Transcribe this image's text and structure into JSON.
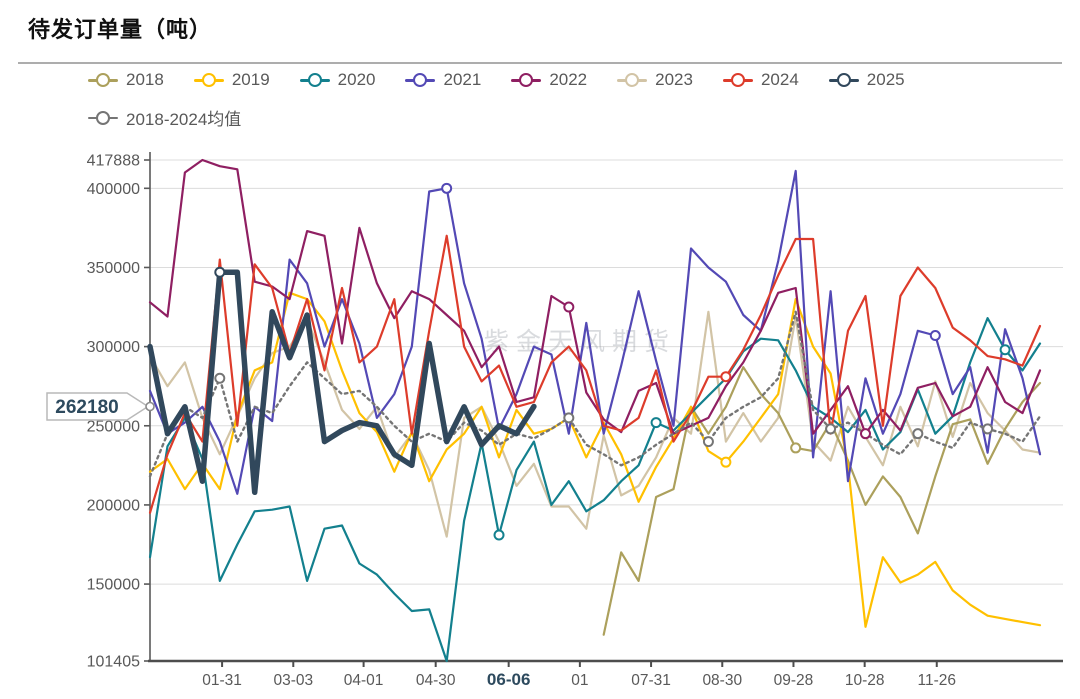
{
  "title": "待发订单量（吨）",
  "watermark": "紫金天风期货",
  "axis_callout": {
    "label": "262180",
    "value": 262180,
    "color": "#2d4a5e",
    "border": "#b9b9b9"
  },
  "legend": {
    "items": [
      {
        "label": "2018",
        "color": "#aca05c"
      },
      {
        "label": "2019",
        "color": "#ffc000"
      },
      {
        "label": "2020",
        "color": "#13808e"
      },
      {
        "label": "2021",
        "color": "#5349b5"
      },
      {
        "label": "2022",
        "color": "#8f1f62"
      },
      {
        "label": "2023",
        "color": "#d2c4a6"
      },
      {
        "label": "2024",
        "color": "#dd3c2b"
      },
      {
        "label": "2025",
        "color": "#31485c"
      },
      {
        "label": "2018-2024均值",
        "color": "#757575"
      }
    ]
  },
  "chart_data": {
    "type": "line",
    "title": "待发订单量（吨）",
    "ylabel": "吨",
    "ylim": [
      101405,
      417888
    ],
    "yticks": [
      417888,
      400000,
      350000,
      300000,
      250000,
      200000,
      150000,
      101405
    ],
    "grid": true,
    "legend_position": "top",
    "x_unit": "week-of-year (52 points, Jan–Dec)",
    "xticks": [
      {
        "label": "01-31",
        "pos": 0.081,
        "highlight": false
      },
      {
        "label": "03-03",
        "pos": 0.161,
        "highlight": false
      },
      {
        "label": "04-01",
        "pos": 0.24,
        "highlight": false
      },
      {
        "label": "04-30",
        "pos": 0.321,
        "highlight": false
      },
      {
        "label": "06-06",
        "pos": 0.403,
        "highlight": true
      },
      {
        "label": "01",
        "pos": 0.483,
        "highlight": false
      },
      {
        "label": "07-31",
        "pos": 0.563,
        "highlight": false
      },
      {
        "label": "08-30",
        "pos": 0.643,
        "highlight": false
      },
      {
        "label": "09-28",
        "pos": 0.723,
        "highlight": false
      },
      {
        "label": "10-28",
        "pos": 0.803,
        "highlight": false
      },
      {
        "label": "11-26",
        "pos": 0.884,
        "highlight": false
      }
    ],
    "draw_order": [
      "2023",
      "2018",
      "2019",
      "2020",
      "2021",
      "2022",
      "2024",
      "2018-2024均值",
      "2025"
    ],
    "series": [
      {
        "name": "2018",
        "color": "#aca05c",
        "width": 2.2,
        "dashed": false,
        "marker_indices": [
          37
        ],
        "values": [
          null,
          null,
          null,
          null,
          null,
          null,
          null,
          null,
          null,
          null,
          null,
          null,
          null,
          null,
          null,
          null,
          null,
          null,
          null,
          null,
          null,
          null,
          null,
          null,
          null,
          null,
          118000,
          170000,
          152000,
          205000,
          210000,
          262000,
          245000,
          262000,
          287000,
          270000,
          258000,
          236000,
          234000,
          252000,
          228000,
          200000,
          218000,
          205000,
          182000,
          218000,
          251000,
          254000,
          226000,
          248000,
          265000,
          277000
        ]
      },
      {
        "name": "2019",
        "color": "#ffc000",
        "width": 2.2,
        "dashed": false,
        "marker_indices": [
          33
        ],
        "values": [
          221000,
          229000,
          210000,
          226000,
          210000,
          257000,
          285000,
          290000,
          334000,
          330000,
          316000,
          285000,
          258000,
          246000,
          221000,
          246000,
          215000,
          235000,
          245000,
          262000,
          230000,
          260000,
          245000,
          248000,
          255000,
          230000,
          252000,
          232000,
          202000,
          224000,
          242000,
          262000,
          234000,
          227000,
          240000,
          255000,
          270000,
          330000,
          300000,
          283000,
          225000,
          123000,
          167000,
          151000,
          156000,
          164000,
          146000,
          137000,
          130000,
          128000,
          126000,
          124000
        ]
      },
      {
        "name": "2020",
        "color": "#13808e",
        "width": 2.2,
        "dashed": false,
        "marker_indices": [
          20,
          29,
          49
        ],
        "values": [
          167000,
          237000,
          255000,
          229000,
          152000,
          175000,
          196000,
          197000,
          199000,
          152000,
          185000,
          187000,
          163000,
          156000,
          144000,
          133000,
          134000,
          101405,
          190000,
          239000,
          181000,
          222000,
          240000,
          200000,
          215000,
          196000,
          203000,
          215000,
          225000,
          252000,
          247000,
          258000,
          269000,
          280000,
          297000,
          305000,
          304000,
          285000,
          262000,
          255000,
          246000,
          260000,
          235000,
          246000,
          273000,
          245000,
          256000,
          290000,
          318000,
          298000,
          285000,
          302000
        ]
      },
      {
        "name": "2021",
        "color": "#5349b5",
        "width": 2.2,
        "dashed": false,
        "marker_indices": [
          17,
          45
        ],
        "values": [
          272000,
          245000,
          252000,
          262000,
          240000,
          207000,
          262000,
          253000,
          355000,
          340000,
          300000,
          330000,
          302000,
          255000,
          270000,
          300000,
          398000,
          400000,
          340000,
          305000,
          248000,
          270000,
          300000,
          295000,
          245000,
          315000,
          245000,
          288000,
          335000,
          291000,
          250000,
          362000,
          350000,
          341000,
          320000,
          310000,
          354000,
          411000,
          230000,
          335000,
          215000,
          280000,
          245000,
          270000,
          310000,
          307000,
          270000,
          287000,
          233000,
          311000,
          280000,
          232000
        ]
      },
      {
        "name": "2022",
        "color": "#8f1f62",
        "width": 2.2,
        "dashed": false,
        "marker_indices": [
          24,
          41
        ],
        "values": [
          328000,
          319000,
          410000,
          417888,
          414000,
          412000,
          341000,
          338000,
          330000,
          373000,
          370000,
          302000,
          375000,
          340000,
          318000,
          335000,
          330000,
          320000,
          310000,
          287000,
          300000,
          265000,
          268000,
          332000,
          325000,
          271000,
          254000,
          246000,
          272000,
          277000,
          245000,
          250000,
          255000,
          275000,
          290000,
          310000,
          334000,
          337000,
          245000,
          260000,
          275000,
          245000,
          260000,
          247000,
          274000,
          277000,
          256000,
          262000,
          287000,
          265000,
          258000,
          285000
        ]
      },
      {
        "name": "2023",
        "color": "#d2c4a6",
        "width": 2.2,
        "dashed": false,
        "marker_indices": [],
        "values": [
          294000,
          275000,
          290000,
          255000,
          232000,
          256000,
          280000,
          296000,
          300000,
          317000,
          290000,
          260000,
          248000,
          262000,
          230000,
          245000,
          222000,
          180000,
          255000,
          262000,
          240000,
          212000,
          226000,
          199000,
          199000,
          185000,
          244000,
          206000,
          212000,
          230000,
          255000,
          245000,
          322000,
          240000,
          258000,
          240000,
          255000,
          319000,
          240000,
          228000,
          262000,
          243000,
          225000,
          262000,
          237000,
          278000,
          243000,
          277000,
          258000,
          247000,
          235000,
          233000
        ]
      },
      {
        "name": "2024",
        "color": "#dd3c2b",
        "width": 2.2,
        "dashed": false,
        "marker_indices": [
          33
        ],
        "values": [
          195000,
          232000,
          258000,
          240000,
          355000,
          250000,
          352000,
          337000,
          296000,
          330000,
          285000,
          337000,
          290000,
          300000,
          330000,
          245000,
          310000,
          370000,
          300000,
          278000,
          288000,
          262000,
          265000,
          290000,
          300000,
          285000,
          250000,
          247000,
          255000,
          285000,
          240000,
          258000,
          281000,
          281000,
          298000,
          320000,
          345000,
          368000,
          368000,
          245000,
          310000,
          332000,
          250000,
          332000,
          350000,
          337000,
          312000,
          304000,
          294000,
          292000,
          288000,
          313000
        ]
      },
      {
        "name": "2025",
        "color": "#31485c",
        "width": 5.5,
        "dashed": false,
        "marker_indices": [
          4
        ],
        "values": [
          300000,
          245000,
          262000,
          215000,
          347000,
          347000,
          208000,
          322000,
          293000,
          320000,
          240000,
          247000,
          252000,
          250000,
          232000,
          225000,
          302000,
          240000,
          262000,
          238000,
          250000,
          245000,
          262180,
          null,
          null,
          null,
          null,
          null,
          null,
          null,
          null,
          null,
          null,
          null,
          null,
          null,
          null,
          null,
          null,
          null,
          null,
          null,
          null,
          null,
          null,
          null,
          null,
          null,
          null,
          null,
          null,
          null
        ]
      },
      {
        "name": "2018-2024均值",
        "color": "#757575",
        "width": 2.4,
        "dashed": true,
        "marker_indices": [
          4,
          24,
          32,
          39,
          44,
          48
        ],
        "values": [
          218000,
          245000,
          262000,
          255000,
          280000,
          240000,
          262000,
          258000,
          275000,
          290000,
          280000,
          270000,
          272000,
          262000,
          250000,
          240000,
          245000,
          240000,
          252000,
          247000,
          238000,
          245000,
          242000,
          248000,
          255000,
          238000,
          232000,
          225000,
          230000,
          238000,
          245000,
          252000,
          240000,
          255000,
          262000,
          268000,
          280000,
          322000,
          260000,
          248000,
          252000,
          245000,
          238000,
          232000,
          245000,
          240000,
          236000,
          252000,
          248000,
          245000,
          240000,
          256000
        ]
      }
    ],
    "style": {
      "grid_color": "#dcdcdc",
      "yaxis_color": "#595959",
      "xaxis_color": "#4d4d4d",
      "tick_text_color": "#595959",
      "highlight_text_color": "#2d4a5e",
      "watermark_color": "#8d939c"
    }
  }
}
